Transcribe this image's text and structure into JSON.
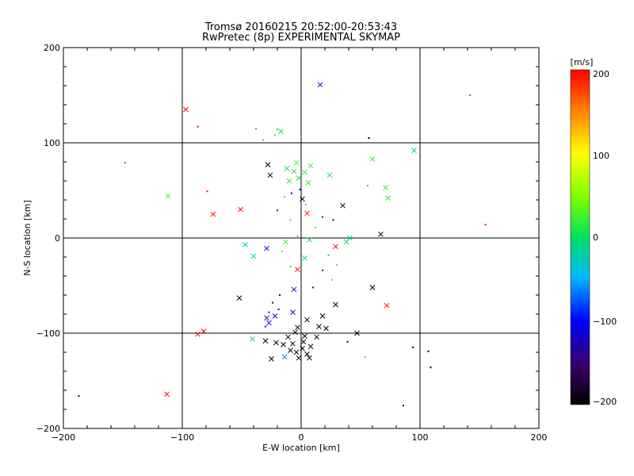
{
  "chart_data": {
    "type": "scatter",
    "title": "Tromsø 20160215 20:52:00-20:53:43",
    "subtitle": "RwPretec (8p) EXPERIMENTAL SKYMAP",
    "xlabel": "E-W location [km]",
    "ylabel": "N-S location [km]",
    "xlim": [
      -200,
      200
    ],
    "ylim": [
      -200,
      200
    ],
    "xticks": [
      "−200",
      "−100",
      "0",
      "100",
      "200"
    ],
    "yticks": [
      "200",
      "100",
      "0",
      "−100",
      "−200"
    ],
    "grid": true,
    "colorbar": {
      "label": "[m/s]",
      "range": [
        -200,
        200
      ],
      "ticks": [
        "200",
        "100",
        "0",
        "−100",
        "−200"
      ]
    },
    "marker_legend": {
      "x": "cross marker",
      "small": "small dot"
    },
    "points": [
      [
        16,
        161,
        -120,
        "x"
      ],
      [
        -97,
        135,
        200,
        "x"
      ],
      [
        -87,
        117,
        200,
        "d"
      ],
      [
        142,
        150,
        -60,
        "d"
      ],
      [
        -148,
        79,
        -60,
        "d"
      ],
      [
        -112,
        44,
        20,
        "x"
      ],
      [
        -79,
        49,
        200,
        "d"
      ],
      [
        -74,
        25,
        190,
        "x"
      ],
      [
        -51,
        30,
        190,
        "x"
      ],
      [
        -20,
        114,
        10,
        "d"
      ],
      [
        -17,
        112,
        0,
        "x"
      ],
      [
        -38,
        115,
        -30,
        "d"
      ],
      [
        -32,
        103,
        20,
        "d"
      ],
      [
        -22,
        108,
        20,
        "d"
      ],
      [
        57,
        105,
        -200,
        "d"
      ],
      [
        60,
        83,
        20,
        "x"
      ],
      [
        95,
        92,
        -30,
        "x"
      ],
      [
        -28,
        77,
        -200,
        "x"
      ],
      [
        -26,
        66,
        -200,
        "x"
      ],
      [
        71,
        53,
        20,
        "x"
      ],
      [
        73,
        42,
        20,
        "x"
      ],
      [
        56,
        55,
        -20,
        "d"
      ],
      [
        24,
        66,
        10,
        "x"
      ],
      [
        35,
        34,
        -200,
        "x"
      ],
      [
        155,
        14,
        200,
        "d"
      ],
      [
        67,
        4,
        -200,
        "x"
      ],
      [
        -47,
        -7,
        0,
        "x"
      ],
      [
        -29,
        -11,
        -110,
        "x"
      ],
      [
        -40,
        -19,
        -20,
        "x"
      ],
      [
        29,
        -9,
        200,
        "x"
      ],
      [
        -52,
        -63,
        -200,
        "x"
      ],
      [
        60,
        -52,
        -200,
        "x"
      ],
      [
        72,
        -71,
        200,
        "x"
      ],
      [
        29,
        -70,
        -200,
        "x"
      ],
      [
        -41,
        -106,
        -30,
        "x"
      ],
      [
        -82,
        -98,
        200,
        "x"
      ],
      [
        -87,
        -101,
        200,
        "x"
      ],
      [
        47,
        -100,
        -200,
        "x"
      ],
      [
        -113,
        -164,
        200,
        "x"
      ],
      [
        -187,
        -166,
        -200,
        "d"
      ],
      [
        54,
        -125,
        30,
        "d"
      ],
      [
        94,
        -115,
        -200,
        "d"
      ],
      [
        107,
        -119,
        -200,
        "d"
      ],
      [
        109,
        -136,
        -200,
        "d"
      ],
      [
        86,
        -176,
        -200,
        "d"
      ],
      [
        -25,
        -127,
        -200,
        "x"
      ],
      [
        -30,
        -108,
        -200,
        "x"
      ],
      [
        -21,
        -110,
        -200,
        "x"
      ],
      [
        -14,
        -125,
        -60,
        "x"
      ],
      [
        39,
        -109,
        -200,
        "d"
      ],
      [
        41,
        0,
        -30,
        "x"
      ],
      [
        5,
        26,
        190,
        "x"
      ],
      [
        27,
        19,
        -130,
        "d"
      ],
      [
        30,
        -28,
        20,
        "d"
      ],
      [
        38,
        -4,
        0,
        "x"
      ],
      [
        -13,
        -4,
        20,
        "x"
      ],
      [
        -6,
        -54,
        -130,
        "x"
      ],
      [
        10,
        -52,
        -130,
        "d"
      ],
      [
        -3,
        -33,
        190,
        "x"
      ],
      [
        -7,
        -78,
        -120,
        "x"
      ],
      [
        5,
        -86,
        -200,
        "x"
      ],
      [
        18,
        -82,
        -200,
        "x"
      ],
      [
        15,
        -93,
        -200,
        "x"
      ],
      [
        1,
        41,
        -200,
        "x"
      ],
      [
        -12,
        73,
        10,
        "x"
      ],
      [
        -6,
        70,
        10,
        "x"
      ],
      [
        3,
        69,
        20,
        "x"
      ],
      [
        -10,
        60,
        20,
        "x"
      ],
      [
        8,
        76,
        20,
        "x"
      ],
      [
        -2,
        63,
        10,
        "x"
      ],
      [
        6,
        58,
        20,
        "x"
      ],
      [
        -4,
        79,
        20,
        "x"
      ],
      [
        -8,
        47,
        -110,
        "d"
      ],
      [
        -1,
        51,
        -120,
        "d"
      ],
      [
        -14,
        43,
        20,
        "d"
      ],
      [
        4,
        35,
        30,
        "d"
      ],
      [
        -20,
        29,
        -110,
        "d"
      ],
      [
        18,
        22,
        -90,
        "d"
      ],
      [
        -9,
        19,
        20,
        "d"
      ],
      [
        12,
        11,
        20,
        "d"
      ],
      [
        -3,
        2,
        10,
        "d"
      ],
      [
        7,
        -2,
        10,
        "x"
      ],
      [
        -16,
        -14,
        20,
        "d"
      ],
      [
        23,
        -18,
        -40,
        "d"
      ],
      [
        3,
        -21,
        -20,
        "x"
      ],
      [
        -9,
        -30,
        20,
        "d"
      ],
      [
        18,
        -34,
        -120,
        "d"
      ],
      [
        26,
        -44,
        20,
        "d"
      ],
      [
        -18,
        -60,
        -120,
        "d"
      ],
      [
        -24,
        -68,
        -130,
        "d"
      ],
      [
        -27,
        -78,
        -120,
        "d"
      ],
      [
        -29,
        -84,
        -130,
        "x"
      ],
      [
        -27,
        -89,
        -120,
        "x"
      ],
      [
        -22,
        -82,
        -120,
        "x"
      ],
      [
        -30,
        -93,
        -120,
        "d"
      ],
      [
        -19,
        -75,
        -120,
        "d"
      ],
      [
        -5,
        -99,
        -200,
        "x"
      ],
      [
        -11,
        -104,
        -200,
        "x"
      ],
      [
        3,
        -103,
        -200,
        "x"
      ],
      [
        -7,
        -111,
        -200,
        "x"
      ],
      [
        1,
        -116,
        -200,
        "x"
      ],
      [
        -4,
        -120,
        -200,
        "x"
      ],
      [
        5,
        -122,
        -200,
        "x"
      ],
      [
        -9,
        -118,
        -200,
        "x"
      ],
      [
        2,
        -109,
        -200,
        "x"
      ],
      [
        -2,
        -126,
        -200,
        "x"
      ],
      [
        8,
        -114,
        -200,
        "x"
      ],
      [
        7,
        -126,
        -200,
        "x"
      ],
      [
        -15,
        -112,
        -200,
        "x"
      ],
      [
        13,
        -104,
        -200,
        "x"
      ],
      [
        21,
        -95,
        -200,
        "x"
      ],
      [
        -3,
        -94,
        -200,
        "x"
      ]
    ]
  }
}
